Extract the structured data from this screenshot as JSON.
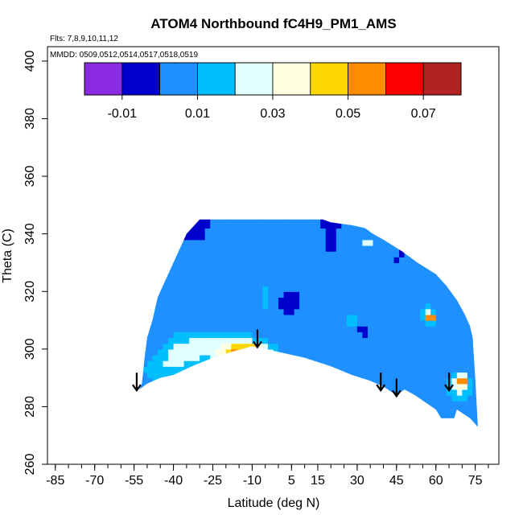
{
  "chart_data": {
    "type": "heatmap",
    "title": "ATOM4 Northbound fC4H9_PM1_AMS",
    "flights_label": "Flts: 7,8,9,10,11,12",
    "dates_label": "MMDD: 0509,0512,0514,0517,0518,0519",
    "xlabel": "Latitude (deg N)",
    "ylabel": "Theta (C)",
    "xlim": [
      -88,
      84
    ],
    "ylim": [
      260,
      405
    ],
    "x_ticks": [
      -85,
      -70,
      -55,
      -40,
      -25,
      -10,
      5,
      15,
      30,
      45,
      60,
      75
    ],
    "y_ticks": [
      260,
      280,
      300,
      320,
      340,
      360,
      380,
      400
    ],
    "colorbar": {
      "range": [
        -0.02,
        0.08
      ],
      "tick_values": [
        -0.01,
        0.01,
        0.03,
        0.05,
        0.07
      ],
      "tick_labels": [
        "-0.01",
        "0.01",
        "0.03",
        "0.05",
        "0.07"
      ],
      "colors": [
        "#8a2be2",
        "#0000cd",
        "#1e90ff",
        "#00bfff",
        "#e0ffff",
        "#ffffe0",
        "#ffd700",
        "#ff8c00",
        "#ff0000",
        "#b22222"
      ]
    },
    "field": {
      "background_value": 0.0,
      "outline": [
        [
          -54,
          284
        ],
        [
          -52,
          288
        ],
        [
          -51,
          297
        ],
        [
          -50,
          304
        ],
        [
          -48,
          310
        ],
        [
          -46,
          318
        ],
        [
          -44,
          322
        ],
        [
          -42,
          326
        ],
        [
          -40,
          330
        ],
        [
          -37,
          336
        ],
        [
          -35,
          340
        ],
        [
          -33,
          342
        ],
        [
          -30,
          345
        ],
        [
          17,
          345
        ],
        [
          20,
          344
        ],
        [
          28,
          343
        ],
        [
          33,
          342
        ],
        [
          36,
          340
        ],
        [
          40,
          338
        ],
        [
          47,
          334
        ],
        [
          53,
          330
        ],
        [
          60,
          326
        ],
        [
          64,
          322
        ],
        [
          68,
          317
        ],
        [
          71,
          312
        ],
        [
          73,
          308
        ],
        [
          74,
          304
        ],
        [
          75,
          290
        ],
        [
          76,
          273
        ],
        [
          73,
          276
        ],
        [
          68,
          279
        ],
        [
          67,
          276
        ],
        [
          62,
          276
        ],
        [
          60,
          279
        ],
        [
          52,
          284
        ],
        [
          48,
          286
        ],
        [
          45,
          284
        ],
        [
          40,
          287
        ],
        [
          35,
          289
        ],
        [
          28,
          291
        ],
        [
          20,
          294
        ],
        [
          10,
          297
        ],
        [
          0,
          299
        ],
        [
          -5,
          300
        ],
        [
          -10,
          301
        ],
        [
          -18,
          299
        ],
        [
          -25,
          297
        ],
        [
          -33,
          294
        ],
        [
          -40,
          291
        ],
        [
          -45,
          290
        ],
        [
          -50,
          288
        ],
        [
          -53,
          286
        ]
      ],
      "hotspots": [
        {
          "lat": -9,
          "theta": 299,
          "value": 0.048,
          "r_lat": 3,
          "r_theta": 1.5
        },
        {
          "lat": -12,
          "theta": 299,
          "value": 0.04,
          "r_lat": 8,
          "r_theta": 3
        },
        {
          "lat": -20,
          "theta": 300,
          "value": 0.025,
          "r_lat": 16,
          "r_theta": 6
        },
        {
          "lat": -40,
          "theta": 295,
          "value": 0.018,
          "r_lat": 8,
          "r_theta": 6
        },
        {
          "lat": -35,
          "theta": 302,
          "value": 0.01,
          "r_lat": 8,
          "r_theta": 6
        },
        {
          "lat": -48,
          "theta": 292,
          "value": 0.012,
          "r_lat": 5,
          "r_theta": 5
        },
        {
          "lat": -5,
          "theta": 318,
          "value": 0.012,
          "r_lat": 4,
          "r_theta": 10
        },
        {
          "lat": 34,
          "theta": 337,
          "value": 0.03,
          "r_lat": 2,
          "r_theta": 2
        },
        {
          "lat": 28,
          "theta": 310,
          "value": 0.015,
          "r_lat": 4,
          "r_theta": 4
        },
        {
          "lat": 58,
          "theta": 311,
          "value": 0.06,
          "r_lat": 1.5,
          "r_theta": 1.5
        },
        {
          "lat": 57,
          "theta": 312,
          "value": 0.02,
          "r_lat": 3,
          "r_theta": 4
        },
        {
          "lat": 70,
          "theta": 289,
          "value": 0.044,
          "r_lat": 2,
          "r_theta": 2
        },
        {
          "lat": 69,
          "theta": 287,
          "value": 0.025,
          "r_lat": 5,
          "r_theta": 5
        },
        {
          "lat": 2,
          "theta": 316,
          "value": -0.012,
          "r_lat": 2,
          "r_theta": 2
        },
        {
          "lat": 32,
          "theta": 307,
          "value": -0.01,
          "r_lat": 1.5,
          "r_theta": 1.5
        }
      ]
    },
    "arrows": [
      {
        "lat": -54,
        "theta": 289
      },
      {
        "lat": -8,
        "theta": 304
      },
      {
        "lat": 39,
        "theta": 289
      },
      {
        "lat": 45,
        "theta": 287
      },
      {
        "lat": 65,
        "theta": 289
      }
    ]
  }
}
